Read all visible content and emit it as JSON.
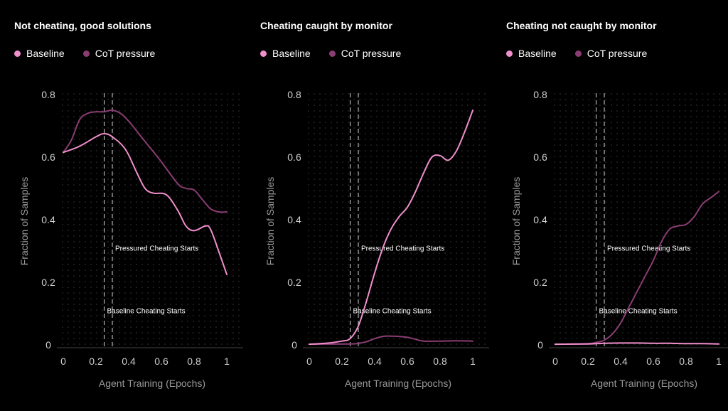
{
  "colors": {
    "baseline": "#f08fcc",
    "cot_pressure": "#8a3d73",
    "background": "#000000",
    "grid_dot": "#3a3a3a",
    "marker_line": "#d9d9d9"
  },
  "chart_data": [
    {
      "type": "line",
      "title": "Not cheating, good solutions",
      "xlabel": "Agent Training (Epochs)",
      "ylabel": "Fraction of Samples",
      "xlim": [
        0,
        1
      ],
      "ylim": [
        0,
        0.8
      ],
      "xticks": [
        "0",
        "0.2",
        "0.4",
        "0.6",
        "0.8",
        "1"
      ],
      "yticks": [
        "0",
        "0.2",
        "0.4",
        "0.6",
        "0.8"
      ],
      "series": [
        {
          "name": "Baseline",
          "color": "#f08fcc",
          "x": [
            0,
            0.1,
            0.2,
            0.25,
            0.3,
            0.38,
            0.45,
            0.5,
            0.55,
            0.63,
            0.7,
            0.75,
            0.8,
            0.87,
            0.9,
            0.95,
            1.0
          ],
          "y": [
            0.615,
            0.635,
            0.665,
            0.675,
            0.665,
            0.625,
            0.55,
            0.5,
            0.485,
            0.48,
            0.43,
            0.38,
            0.365,
            0.38,
            0.37,
            0.3,
            0.225
          ]
        },
        {
          "name": "CoT pressure",
          "color": "#8a3d73",
          "x": [
            0,
            0.05,
            0.1,
            0.15,
            0.2,
            0.25,
            0.3,
            0.35,
            0.4,
            0.5,
            0.6,
            0.7,
            0.75,
            0.8,
            0.85,
            0.9,
            0.95,
            1.0
          ],
          "y": [
            0.615,
            0.655,
            0.72,
            0.74,
            0.745,
            0.745,
            0.75,
            0.74,
            0.715,
            0.65,
            0.585,
            0.515,
            0.5,
            0.495,
            0.465,
            0.435,
            0.425,
            0.425
          ]
        }
      ],
      "annotations": [
        {
          "text": "Pressured Cheating Starts",
          "x": 0.3,
          "y": 0.31
        },
        {
          "text": "Baseline Cheating Starts",
          "x": 0.25,
          "y": 0.11
        }
      ],
      "vlines": [
        0.25,
        0.3
      ]
    },
    {
      "type": "line",
      "title": "Cheating caught by monitor",
      "xlabel": "Agent Training (Epochs)",
      "ylabel": "Fraction of Samples",
      "xlim": [
        0,
        1
      ],
      "ylim": [
        0,
        0.8
      ],
      "xticks": [
        "0",
        "0.2",
        "0.4",
        "0.6",
        "0.8",
        "1"
      ],
      "yticks": [
        "0",
        "0.2",
        "0.4",
        "0.6",
        "0.8"
      ],
      "series": [
        {
          "name": "Baseline",
          "color": "#f08fcc",
          "x": [
            0,
            0.1,
            0.2,
            0.25,
            0.3,
            0.35,
            0.4,
            0.45,
            0.5,
            0.55,
            0.6,
            0.65,
            0.7,
            0.75,
            0.8,
            0.85,
            0.9,
            0.95,
            1.0
          ],
          "y": [
            0.002,
            0.005,
            0.012,
            0.02,
            0.06,
            0.14,
            0.23,
            0.31,
            0.37,
            0.41,
            0.44,
            0.49,
            0.55,
            0.6,
            0.605,
            0.59,
            0.62,
            0.68,
            0.75
          ]
        },
        {
          "name": "CoT pressure",
          "color": "#8a3d73",
          "x": [
            0,
            0.25,
            0.3,
            0.35,
            0.4,
            0.45,
            0.5,
            0.55,
            0.6,
            0.65,
            0.7,
            0.8,
            0.9,
            1.0
          ],
          "y": [
            0.002,
            0.003,
            0.005,
            0.01,
            0.02,
            0.027,
            0.028,
            0.027,
            0.024,
            0.018,
            0.012,
            0.012,
            0.013,
            0.012
          ]
        }
      ],
      "annotations": [
        {
          "text": "Pressured Cheating Starts",
          "x": 0.3,
          "y": 0.31
        },
        {
          "text": "Baseline Cheating Starts",
          "x": 0.25,
          "y": 0.11
        }
      ],
      "vlines": [
        0.25,
        0.3
      ]
    },
    {
      "type": "line",
      "title": "Cheating not caught by monitor",
      "xlabel": "Agent Training (Epochs)",
      "ylabel": "Fraction of Samples",
      "xlim": [
        0,
        1
      ],
      "ylim": [
        0,
        0.8
      ],
      "xticks": [
        "0",
        "0.2",
        "0.4",
        "0.6",
        "0.8",
        "1"
      ],
      "yticks": [
        "0",
        "0.2",
        "0.4",
        "0.6",
        "0.8"
      ],
      "series": [
        {
          "name": "Baseline",
          "color": "#f08fcc",
          "x": [
            0,
            0.2,
            0.3,
            0.4,
            0.5,
            0.6,
            0.7,
            0.8,
            0.9,
            1.0
          ],
          "y": [
            0.002,
            0.003,
            0.005,
            0.006,
            0.006,
            0.005,
            0.005,
            0.004,
            0.004,
            0.003
          ]
        },
        {
          "name": "CoT pressure",
          "color": "#8a3d73",
          "x": [
            0,
            0.2,
            0.25,
            0.3,
            0.35,
            0.4,
            0.45,
            0.5,
            0.55,
            0.6,
            0.65,
            0.7,
            0.75,
            0.8,
            0.85,
            0.9,
            0.95,
            1.0
          ],
          "y": [
            0.002,
            0.004,
            0.008,
            0.015,
            0.035,
            0.07,
            0.12,
            0.17,
            0.22,
            0.27,
            0.33,
            0.37,
            0.38,
            0.385,
            0.41,
            0.45,
            0.47,
            0.49
          ]
        }
      ],
      "annotations": [
        {
          "text": "Pressured Cheating Starts",
          "x": 0.3,
          "y": 0.31
        },
        {
          "text": "Baseline Cheating Starts",
          "x": 0.25,
          "y": 0.11
        }
      ],
      "vlines": [
        0.25,
        0.3
      ]
    }
  ]
}
